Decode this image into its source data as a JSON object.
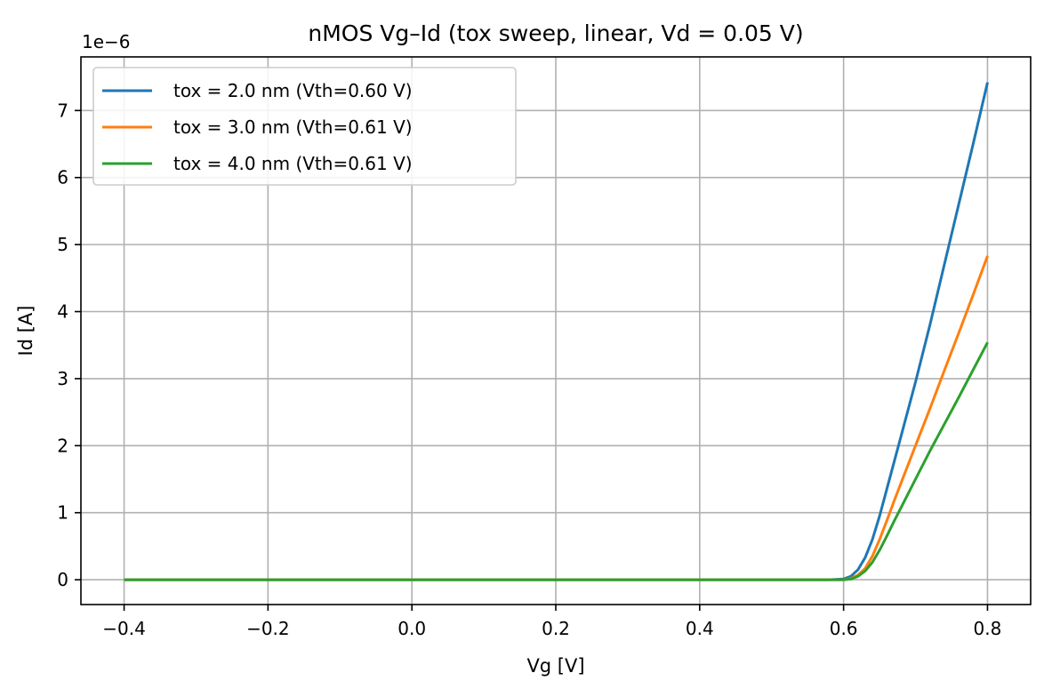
{
  "chart_data": {
    "type": "line",
    "title": "nMOS Vg–Id (tox sweep, linear, Vd = 0.05 V)",
    "xlabel": "Vg [V]",
    "ylabel": "Id [A]",
    "y_offset_label": "1e−6",
    "xlim": [
      -0.46,
      0.86
    ],
    "ylim": [
      -3.7e-07,
      7.8e-06
    ],
    "x_ticks": [
      -0.4,
      -0.2,
      0.0,
      0.2,
      0.4,
      0.6,
      0.8
    ],
    "x_tick_labels": [
      "−0.4",
      "−0.2",
      "0.0",
      "0.2",
      "0.4",
      "0.6",
      "0.8"
    ],
    "y_ticks": [
      0,
      1e-06,
      2e-06,
      3e-06,
      4e-06,
      5e-06,
      6e-06,
      7e-06
    ],
    "y_tick_labels": [
      "0",
      "1",
      "2",
      "3",
      "4",
      "5",
      "6",
      "7"
    ],
    "grid": true,
    "legend_position": "top-left",
    "x": [
      -0.4,
      0.0,
      0.4,
      0.58,
      0.6,
      0.61,
      0.62,
      0.63,
      0.64,
      0.65,
      0.66,
      0.67,
      0.68,
      0.7,
      0.72,
      0.74,
      0.76,
      0.78,
      0.8
    ],
    "series": [
      {
        "name": "tox = 2.0 nm (Vth=0.60 V)",
        "color": "#1f77b4",
        "values": [
          0,
          0,
          0,
          0,
          1e-08,
          5e-08,
          1.5e-07,
          3.3e-07,
          6e-07,
          9.5e-07,
          1.35e-06,
          1.75e-06,
          2.15e-06,
          2.95e-06,
          3.8e-06,
          4.7e-06,
          5.6e-06,
          6.5e-06,
          7.42e-06
        ]
      },
      {
        "name": "tox = 3.0 nm (Vth=0.61 V)",
        "color": "#ff7f0e",
        "values": [
          0,
          0,
          0,
          0,
          0.0,
          2e-08,
          7e-08,
          1.7e-07,
          3.5e-07,
          6e-07,
          8.8e-07,
          1.17e-06,
          1.45e-06,
          2e-06,
          2.55e-06,
          3.12e-06,
          3.68e-06,
          4.25e-06,
          4.83e-06
        ]
      },
      {
        "name": "tox = 4.0 nm (Vth=0.61 V)",
        "color": "#2ca02c",
        "values": [
          0,
          0,
          0,
          0,
          0.0,
          1e-08,
          5e-08,
          1.3e-07,
          2.6e-07,
          4.4e-07,
          6.5e-07,
          8.7e-07,
          1.08e-06,
          1.5e-06,
          1.92e-06,
          2.32e-06,
          2.72e-06,
          3.13e-06,
          3.54e-06
        ]
      }
    ]
  }
}
